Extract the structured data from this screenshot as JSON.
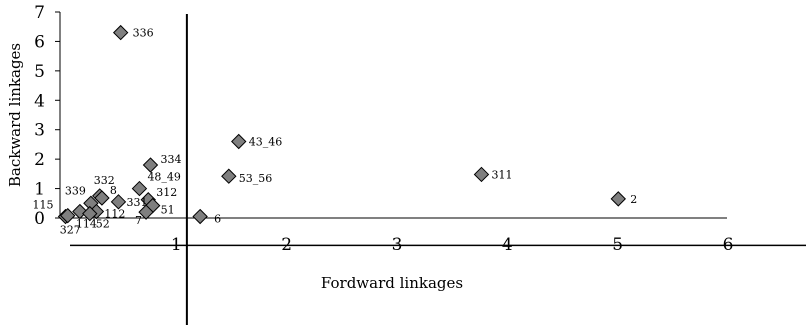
{
  "chart_data": {
    "type": "scatter",
    "xlabel": "Fordward linkages",
    "ylabel": "Backward linkages",
    "xlim": [
      0,
      6
    ],
    "ylim": [
      0,
      7
    ],
    "x_ticks": [
      1,
      2,
      3,
      4,
      5,
      6
    ],
    "y_ticks": [
      0,
      1,
      2,
      3,
      4,
      5,
      6,
      7
    ],
    "grid": false,
    "legend": "none",
    "reference_lines": {
      "x": 1.15,
      "y": -0.93
    },
    "marker_color": "#7f7f7f",
    "points": [
      {
        "label": "336",
        "x": 0.55,
        "y": 6.3
      },
      {
        "label": "43_46",
        "x": 1.62,
        "y": 2.6
      },
      {
        "label": "334",
        "x": 0.82,
        "y": 1.8
      },
      {
        "label": "53_56",
        "x": 1.53,
        "y": 1.42
      },
      {
        "label": "311",
        "x": 3.82,
        "y": 1.48
      },
      {
        "label": "48_49",
        "x": 0.72,
        "y": 1.0
      },
      {
        "label": "2",
        "x": 5.06,
        "y": 0.65
      },
      {
        "label": "332",
        "x": 0.36,
        "y": 0.75
      },
      {
        "label": "339",
        "x": 0.28,
        "y": 0.5
      },
      {
        "label": "8",
        "x": 0.38,
        "y": 0.68
      },
      {
        "label": "312",
        "x": 0.8,
        "y": 0.62
      },
      {
        "label": "331",
        "x": 0.53,
        "y": 0.55
      },
      {
        "label": "51",
        "x": 0.84,
        "y": 0.42
      },
      {
        "label": "115",
        "x": 0.05,
        "y": 0.05
      },
      {
        "label": "112",
        "x": 0.33,
        "y": 0.22
      },
      {
        "label": "7",
        "x": 0.78,
        "y": 0.2
      },
      {
        "label": "327",
        "x": 0.07,
        "y": 0.08
      },
      {
        "label": "114",
        "x": 0.18,
        "y": 0.22
      },
      {
        "label": "52",
        "x": 0.27,
        "y": 0.15
      },
      {
        "label": "6",
        "x": 1.27,
        "y": 0.05
      }
    ]
  }
}
